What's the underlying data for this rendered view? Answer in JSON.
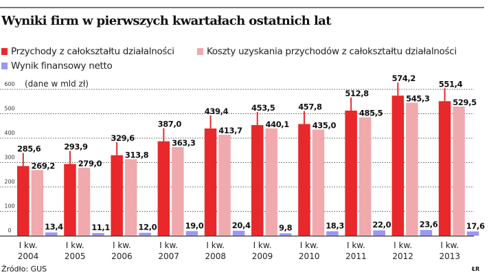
{
  "title": "Wyniki firm w pierwszych kwartałach ostatnich lat",
  "unit_note": "(dane w mld zł)",
  "source": "Źródło: GUS",
  "signature": "ŁR",
  "chart_data": {
    "type": "bar",
    "title": "Wyniki firm w pierwszych kwartałach ostatnich lat",
    "categories": [
      [
        "I kw.",
        "2004"
      ],
      [
        "I kw.",
        "2005"
      ],
      [
        "I kw.",
        "2006"
      ],
      [
        "I kw.",
        "2007"
      ],
      [
        "I kw.",
        "2008"
      ],
      [
        "I kw.",
        "2009"
      ],
      [
        "I kw.",
        "2010"
      ],
      [
        "I kw.",
        "2011"
      ],
      [
        "I kw.",
        "2012"
      ],
      [
        "I kw.",
        "2013"
      ]
    ],
    "ylim": [
      0,
      600
    ],
    "yticks": [
      "0",
      "100",
      "200",
      "300",
      "400",
      "500",
      "600"
    ],
    "grid": true,
    "legend_position": "top-left",
    "series": [
      {
        "name": "Przychody z całokształtu działalności",
        "color": "#e8282a",
        "values": [
          285.6,
          293.9,
          329.6,
          387.0,
          439.4,
          453.5,
          457.8,
          512.8,
          574.2,
          551.4
        ],
        "labels": [
          "285,6",
          "293,9",
          "329,6",
          "387,0",
          "439,4",
          "453,5",
          "457,8",
          "512,8",
          "574,2",
          "551,4"
        ]
      },
      {
        "name": "Koszty uzyskania przychodów z całokształtu działalności",
        "color": "#f0a9ad",
        "values": [
          269.2,
          279.0,
          313.8,
          363.3,
          413.7,
          440.1,
          435.0,
          485.5,
          545.3,
          529.5
        ],
        "labels": [
          "269,2",
          "279,0",
          "313,8",
          "363,3",
          "413,7",
          "440,1",
          "435,0",
          "485,5",
          "545,3",
          "529,5"
        ]
      },
      {
        "name": "Wynik finansowy netto",
        "color": "#9b97f2",
        "values": [
          13.4,
          11.1,
          12.0,
          19.0,
          20.4,
          9.8,
          18.3,
          22.0,
          23.6,
          17.6
        ],
        "labels": [
          "13,4",
          "11,1",
          "12,0",
          "19,0",
          "20,4",
          "9,8",
          "18,3",
          "22,0",
          "23,6",
          "17,6"
        ]
      }
    ]
  }
}
